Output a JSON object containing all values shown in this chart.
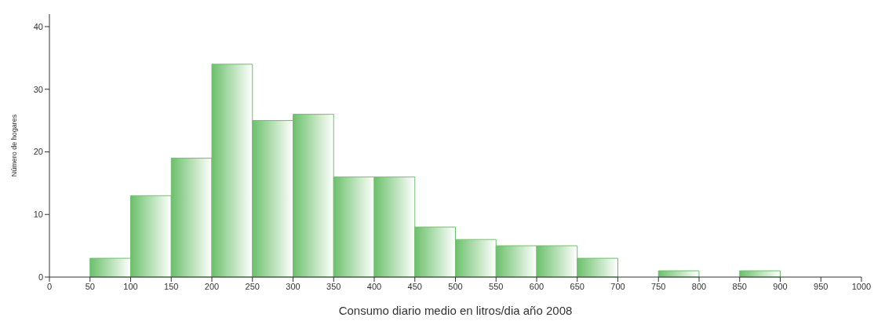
{
  "chart_data": {
    "type": "histogram",
    "xlabel": "Consumo diario medio en litros/dia año 2008",
    "ylabel": "Número de hogares",
    "bins": [
      50,
      100,
      150,
      200,
      250,
      300,
      350,
      400,
      450,
      500,
      550,
      600,
      650,
      700,
      750,
      800,
      850,
      900
    ],
    "values": [
      3,
      13,
      19,
      34,
      25,
      26,
      16,
      16,
      8,
      6,
      5,
      5,
      3,
      0,
      1,
      0,
      1
    ],
    "color": "#6cc06c",
    "xlim": [
      0,
      1000
    ],
    "xticks": [
      0,
      50,
      100,
      150,
      200,
      250,
      300,
      350,
      400,
      450,
      500,
      550,
      600,
      650,
      700,
      750,
      800,
      850,
      900,
      950,
      1000
    ],
    "ylim": [
      0,
      42
    ],
    "yticks": [
      0,
      10,
      20,
      30,
      40
    ],
    "grid": false
  }
}
